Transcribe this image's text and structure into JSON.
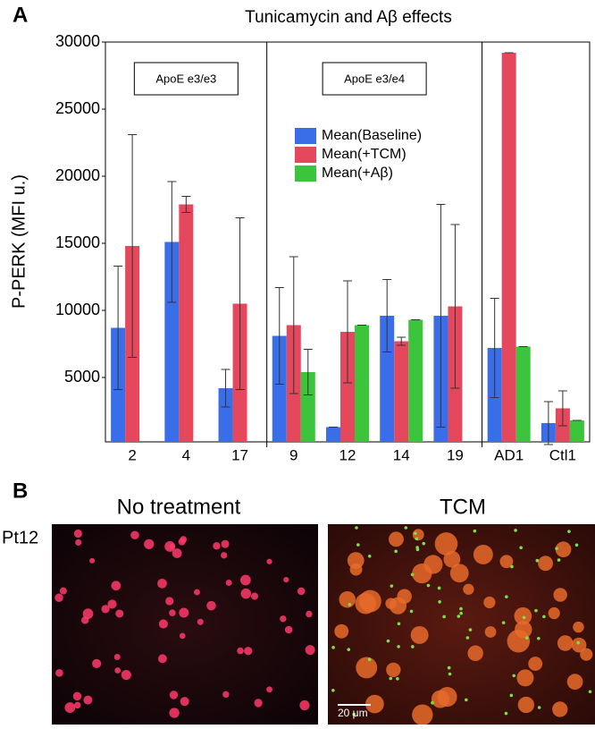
{
  "panel_labels": [
    "A",
    "B"
  ],
  "chart_data": {
    "type": "bar",
    "title": "Tunicamycin and Aβ effects",
    "y_label": "P-PERK (MFI u.)",
    "categories": [
      "2",
      "4",
      "17",
      "9",
      "12",
      "14",
      "19",
      "AD1",
      "Ctl1"
    ],
    "groups": [
      "ApoE e3/e3",
      "ApoE e3/e4"
    ],
    "series": [
      {
        "name": "Mean(Baseline)",
        "color": "#3a6ee8",
        "values": [
          8700,
          15100,
          4200,
          8100,
          1300,
          9600,
          9600,
          7200,
          1600
        ],
        "errors": [
          4600,
          4500,
          1400,
          3600,
          0,
          2700,
          8300,
          3700,
          1600
        ]
      },
      {
        "name": "Mean(+TCM)",
        "color": "#e5485c",
        "values": [
          14800,
          17900,
          10500,
          8900,
          8400,
          7700,
          10300,
          29200,
          2700
        ],
        "errors": [
          8300,
          600,
          6400,
          5100,
          3800,
          300,
          6100,
          0,
          1300
        ]
      },
      {
        "name": "Mean(+Aβ)",
        "color": "#3cc43c",
        "values": [
          null,
          null,
          null,
          5400,
          8900,
          9300,
          null,
          7300,
          1800
        ],
        "errors": [
          null,
          null,
          null,
          1700,
          0,
          0,
          null,
          0,
          0
        ]
      }
    ],
    "ylim": [
      200,
      30000
    ],
    "yticks": [
      5000,
      10000,
      15000,
      20000,
      25000,
      30000
    ],
    "grid": false
  },
  "images": {
    "row_label": "Pt12",
    "titles": [
      "No treatment",
      "TCM"
    ],
    "scale_bar": "20 μm"
  }
}
